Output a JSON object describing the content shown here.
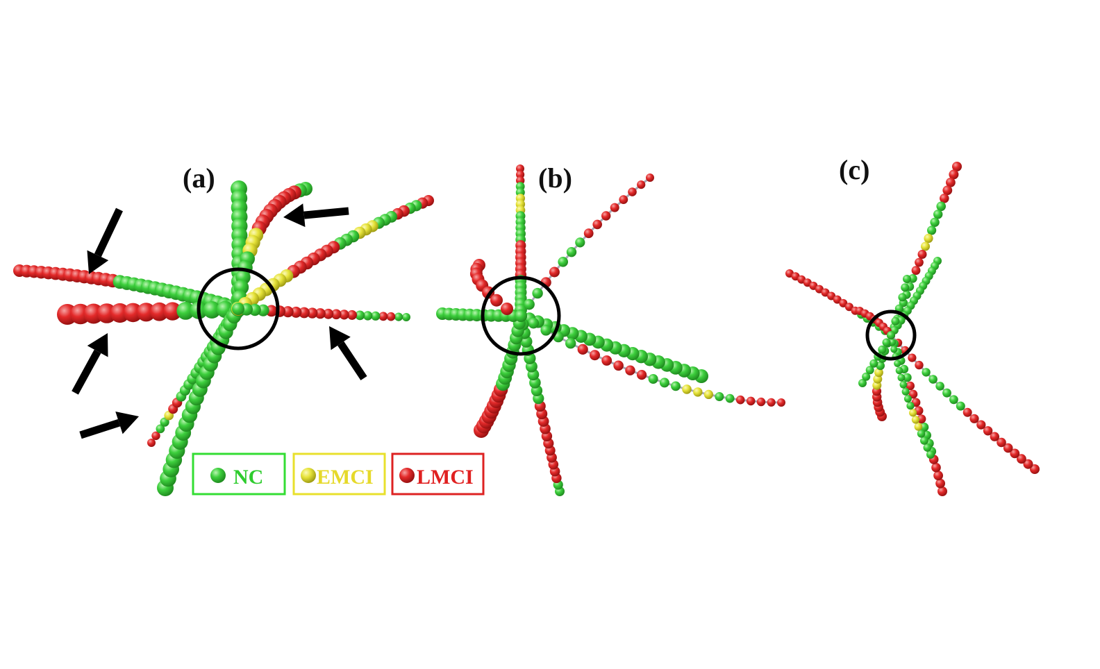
{
  "panels": [
    {
      "id": "a",
      "label": "(a)"
    },
    {
      "id": "b",
      "label": "(b)"
    },
    {
      "id": "c",
      "label": "(c)"
    }
  ],
  "legend": [
    {
      "key": "nc",
      "label": "NC",
      "color": "#3dcf3d",
      "border": "#33dd33",
      "text_color": "#2ecc2e"
    },
    {
      "key": "emci",
      "label": "EMCI",
      "color": "#e6e33a",
      "border": "#e8e02c",
      "text_color": "#e6d92a"
    },
    {
      "key": "lmci",
      "label": "LMCI",
      "color": "#e32a2a",
      "border": "#dd2222",
      "text_color": "#e02020"
    }
  ],
  "colors": {
    "nc": "#3dcf3d",
    "emci": "#e6e33a",
    "lmci": "#e32a2a",
    "branch_line": "#a8a8b4",
    "circle": "#000000",
    "arrow": "#000000"
  },
  "icons": {
    "arrow": "black-arrow-icon",
    "center": "center-circle-icon"
  }
}
